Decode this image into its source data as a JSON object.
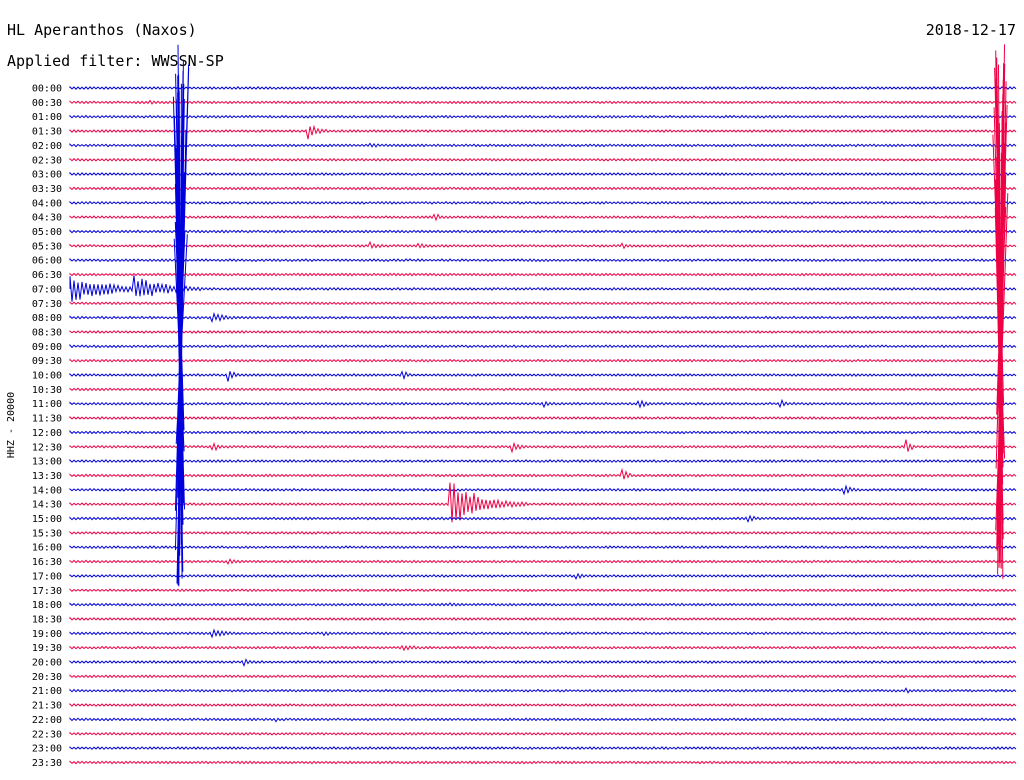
{
  "header": {
    "station": "HL Aperanthos (Naxos)",
    "date": "2018-12-17",
    "filter": "Applied filter: WWSSN-SP"
  },
  "chart_data": {
    "type": "line",
    "subtype": "helicorder",
    "ylabel": "HHZ - 20000",
    "row_labels": [
      "00:00",
      "00:30",
      "01:00",
      "01:30",
      "02:00",
      "02:30",
      "03:00",
      "03:30",
      "04:00",
      "04:30",
      "05:00",
      "05:30",
      "06:00",
      "06:30",
      "07:00",
      "07:30",
      "08:00",
      "08:30",
      "09:00",
      "09:30",
      "10:00",
      "10:30",
      "11:00",
      "11:30",
      "12:00",
      "12:30",
      "13:00",
      "13:30",
      "14:00",
      "14:30",
      "15:00",
      "15:30",
      "16:00",
      "16:30",
      "17:00",
      "17:30",
      "18:00",
      "18:30",
      "19:00",
      "19:30",
      "20:00",
      "20:30",
      "21:00",
      "21:30",
      "22:00",
      "22:30",
      "23:00",
      "23:30"
    ],
    "colors": [
      "#0000dd",
      "#ee0044"
    ],
    "minutes_per_row": 30,
    "events": [
      {
        "row": 1,
        "minute": 2.5,
        "amp": 3,
        "dur": 0.6
      },
      {
        "row": 3,
        "minute": 7.5,
        "amp": 10,
        "dur": 1.0
      },
      {
        "row": 4,
        "minute": 9.5,
        "amp": 3,
        "dur": 1.5
      },
      {
        "row": 9,
        "minute": 11.5,
        "amp": 5,
        "dur": 0.8
      },
      {
        "row": 11,
        "minute": 9.5,
        "amp": 4,
        "dur": 1.0
      },
      {
        "row": 11,
        "minute": 11.0,
        "amp": 4,
        "dur": 1.0
      },
      {
        "row": 11,
        "minute": 17.5,
        "amp": 4,
        "dur": 0.6
      },
      {
        "row": 14,
        "minute": 0.0,
        "amp": 15,
        "dur": 3.5
      },
      {
        "row": 14,
        "minute": 2.0,
        "amp": 14,
        "dur": 3.0
      },
      {
        "row": 16,
        "minute": 4.5,
        "amp": 5,
        "dur": 1.5
      },
      {
        "row": 20,
        "minute": 5.0,
        "amp": 7,
        "dur": 0.6
      },
      {
        "row": 20,
        "minute": 10.5,
        "amp": 6,
        "dur": 0.6
      },
      {
        "row": 22,
        "minute": 15.0,
        "amp": 5,
        "dur": 0.6
      },
      {
        "row": 22,
        "minute": 18.0,
        "amp": 5,
        "dur": 1.0
      },
      {
        "row": 22,
        "minute": 22.5,
        "amp": 5,
        "dur": 0.6
      },
      {
        "row": 25,
        "minute": 4.5,
        "amp": 5,
        "dur": 0.8
      },
      {
        "row": 25,
        "minute": 14.0,
        "amp": 6,
        "dur": 0.8
      },
      {
        "row": 25,
        "minute": 26.5,
        "amp": 8,
        "dur": 0.5
      },
      {
        "row": 27,
        "minute": 17.5,
        "amp": 9,
        "dur": 0.5
      },
      {
        "row": 28,
        "minute": 24.5,
        "amp": 5,
        "dur": 1.0
      },
      {
        "row": 29,
        "minute": 12.0,
        "amp": 30,
        "dur": 2.5
      },
      {
        "row": 30,
        "minute": 21.5,
        "amp": 4,
        "dur": 0.8
      },
      {
        "row": 33,
        "minute": 5.0,
        "amp": 4,
        "dur": 1.0
      },
      {
        "row": 34,
        "minute": 16.0,
        "amp": 4,
        "dur": 1.0
      },
      {
        "row": 36,
        "minute": 12.0,
        "amp": 4,
        "dur": 0.6
      },
      {
        "row": 38,
        "minute": 4.5,
        "amp": 6,
        "dur": 1.2
      },
      {
        "row": 38,
        "minute": 8.0,
        "amp": 4,
        "dur": 0.6
      },
      {
        "row": 39,
        "minute": 10.5,
        "amp": 3,
        "dur": 2.0
      },
      {
        "row": 40,
        "minute": 5.5,
        "amp": 4,
        "dur": 0.6
      },
      {
        "row": 42,
        "minute": 26.5,
        "amp": 3,
        "dur": 0.6
      },
      {
        "row": 44,
        "minute": 6.5,
        "amp": 3,
        "dur": 0.4
      }
    ],
    "large_events": [
      {
        "minute": 3.5,
        "start_row": 0,
        "end_row": 36,
        "color": "#0000dd"
      },
      {
        "minute": 29.5,
        "start_row": 0,
        "end_row": 34,
        "color": "#ee0044"
      }
    ]
  }
}
